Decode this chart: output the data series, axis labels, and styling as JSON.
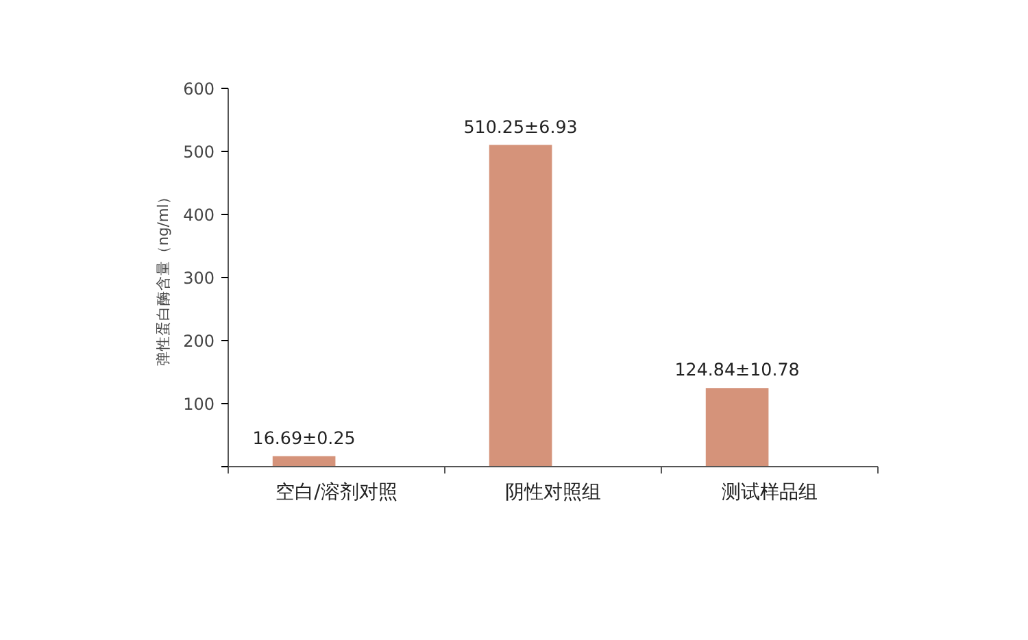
{
  "chart_data": {
    "type": "bar",
    "ylabel": "弹性蛋白酶含量（ng/ml）",
    "categories": [
      "空白/溶剂对照",
      "阴性对照组",
      "测试样品组"
    ],
    "values": [
      16.69,
      510.25,
      124.84
    ],
    "value_labels": [
      "16.69±0.25",
      "510.25±6.93",
      "124.84±10.78"
    ],
    "color": "#d5937a",
    "ylim": [
      0,
      600
    ],
    "yticks": [
      {
        "value": 0,
        "label": null
      },
      100,
      200,
      300,
      400,
      500,
      600
    ],
    "grid": false
  }
}
